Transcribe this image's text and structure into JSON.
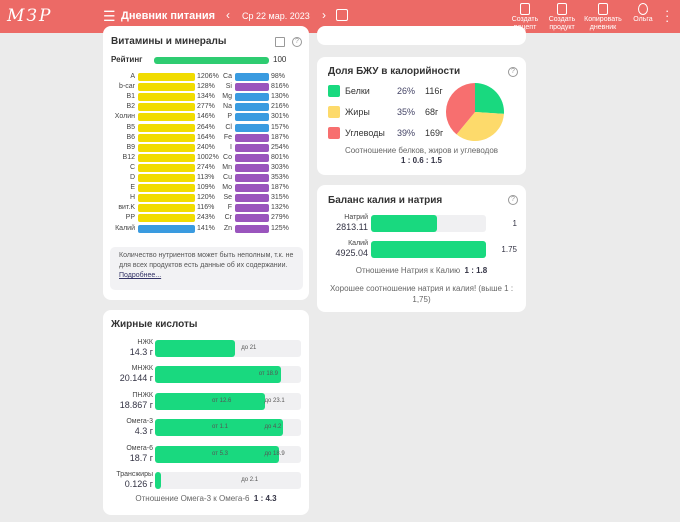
{
  "header": {
    "logo": "МЗР",
    "title": "Дневник питания",
    "date": "Ср 22 мар. 2023",
    "actions": [
      "Создать рецепт",
      "Создать продукт",
      "Копировать дневник",
      "Ольга"
    ]
  },
  "vitamins": {
    "title": "Витамины и минералы",
    "rating_label": "Рейтинг",
    "rating_value": "100",
    "rating_fraction": 1.0,
    "left": [
      [
        "A",
        "1206%",
        "#f1dc00"
      ],
      [
        "b-car",
        "128%",
        "#f1dc00"
      ],
      [
        "B1",
        "134%",
        "#f1dc00"
      ],
      [
        "B2",
        "277%",
        "#f1dc00"
      ],
      [
        "Холин",
        "146%",
        "#f1dc00"
      ],
      [
        "B5",
        "264%",
        "#f1dc00"
      ],
      [
        "B6",
        "164%",
        "#f1dc00"
      ],
      [
        "B9",
        "240%",
        "#f1dc00"
      ],
      [
        "B12",
        "1002%",
        "#f1dc00"
      ],
      [
        "C",
        "274%",
        "#f1dc00"
      ],
      [
        "D",
        "113%",
        "#f1dc00"
      ],
      [
        "E",
        "109%",
        "#f1dc00"
      ],
      [
        "H",
        "120%",
        "#f1dc00"
      ],
      [
        "вит.K",
        "116%",
        "#f1dc00"
      ],
      [
        "PP",
        "243%",
        "#f1dc00"
      ],
      [
        "Калий",
        "141%",
        "#3a9be0"
      ]
    ],
    "right": [
      [
        "Ca",
        "98%",
        "#3a9be0"
      ],
      [
        "Si",
        "816%",
        "#9a55bd"
      ],
      [
        "Mg",
        "130%",
        "#3a9be0"
      ],
      [
        "Na",
        "216%",
        "#3a9be0"
      ],
      [
        "P",
        "301%",
        "#3a9be0"
      ],
      [
        "Cl",
        "157%",
        "#3a9be0"
      ],
      [
        "Fe",
        "187%",
        "#9a55bd"
      ],
      [
        "I",
        "254%",
        "#9a55bd"
      ],
      [
        "Co",
        "801%",
        "#9a55bd"
      ],
      [
        "Mn",
        "303%",
        "#9a55bd"
      ],
      [
        "Cu",
        "353%",
        "#9a55bd"
      ],
      [
        "Mo",
        "187%",
        "#9a55bd"
      ],
      [
        "Se",
        "315%",
        "#9a55bd"
      ],
      [
        "F",
        "132%",
        "#9a55bd"
      ],
      [
        "Cr",
        "279%",
        "#9a55bd"
      ],
      [
        "Zn",
        "125%",
        "#9a55bd"
      ]
    ],
    "note": "Количество нутриентов может быть неполным, т.к. не для всех продуктов есть данные об их содержании.",
    "note_link": "Подробнее..."
  },
  "fatty": {
    "title": "Жирные кислоты",
    "rows": [
      {
        "name": "НЖК",
        "value": "14.3 г",
        "fill": 0.55,
        "marks": [
          [
            "до 21",
            0.7
          ]
        ]
      },
      {
        "name": "МНЖК",
        "value": "20.144 г",
        "fill": 0.86,
        "marks": [
          [
            "от 18.9",
            0.82
          ]
        ]
      },
      {
        "name": "ПНЖК",
        "value": "18.867 г",
        "fill": 0.75,
        "marks": [
          [
            "от 12.6",
            0.5
          ],
          [
            "до 23.1",
            0.86
          ]
        ]
      },
      {
        "name": "Омега-3",
        "value": "4.3 г",
        "fill": 0.88,
        "marks": [
          [
            "от 1.1",
            0.5
          ],
          [
            "до 4.2",
            0.86
          ]
        ]
      },
      {
        "name": "Омега-6",
        "value": "18.7 г",
        "fill": 0.85,
        "marks": [
          [
            "от 5.3",
            0.5
          ],
          [
            "до 18.9",
            0.86
          ]
        ]
      },
      {
        "name": "Трансжиры",
        "value": "0.126 г",
        "fill": 0.04,
        "marks": [
          [
            "до 2.1",
            0.7
          ]
        ]
      }
    ],
    "ratio_label": "Отношение Омега-3 к Омега-6",
    "ratio": "1 : 4.3"
  },
  "bju": {
    "title": "Доля БЖУ в калорийности",
    "items": [
      {
        "name": "Белки",
        "pct": "26%",
        "g": "116г",
        "share": 26,
        "color": "#19d97f"
      },
      {
        "name": "Жиры",
        "pct": "35%",
        "g": "68г",
        "share": 35,
        "color": "#fdda6b"
      },
      {
        "name": "Углеводы",
        "pct": "39%",
        "g": "169г",
        "share": 39,
        "color": "#f76f6f"
      }
    ],
    "ratio_label": "Соотношение белков, жиров и углеводов",
    "ratio": "1 : 0.6 : 1.5"
  },
  "kna": {
    "title": "Баланс калия и натрия",
    "rows": [
      {
        "name": "Натрий",
        "value": "2813.11",
        "fill": 0.57,
        "ratio": "1"
      },
      {
        "name": "Калий",
        "value": "4925.04",
        "fill": 1.0,
        "ratio": "1.75"
      }
    ],
    "ratio_label": "Отношение Натрия к Калию",
    "ratio": "1 : 1.8",
    "comment": "Хорошее соотношение натрия и калия! (выше 1 : 1,75)"
  }
}
